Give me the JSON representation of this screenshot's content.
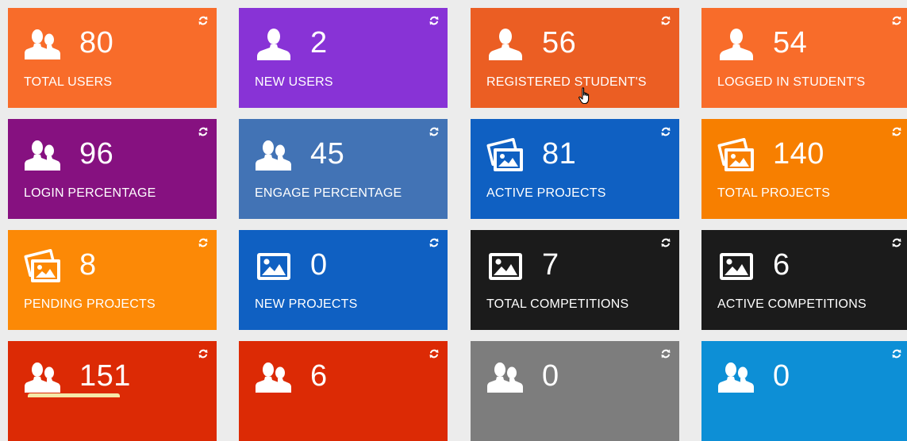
{
  "tiles": [
    {
      "value": "80",
      "label": "TOTAL USERS",
      "color": "#f86c2a",
      "icon": "users-icon"
    },
    {
      "value": "2",
      "label": "NEW USERS",
      "color": "#8833d6",
      "icon": "user-icon"
    },
    {
      "value": "56",
      "label": "REGISTERED STUDENT'S",
      "color": "#eb5e23",
      "icon": "user-icon"
    },
    {
      "value": "54",
      "label": "LOGGED IN STUDENT'S",
      "color": "#f86c2a",
      "icon": "user-icon"
    },
    {
      "value": "96",
      "label": "LOGIN PERCENTAGE",
      "color": "#861180",
      "icon": "users-icon"
    },
    {
      "value": "45",
      "label": "ENGAGE PERCENTAGE",
      "color": "#4273b5",
      "icon": "users-icon"
    },
    {
      "value": "81",
      "label": "ACTIVE PROJECTS",
      "color": "#0f60c2",
      "icon": "pictures-icon"
    },
    {
      "value": "140",
      "label": "TOTAL PROJECTS",
      "color": "#f77f00",
      "icon": "pictures-icon"
    },
    {
      "value": "8",
      "label": "PENDING PROJECTS",
      "color": "#fc8906",
      "icon": "pictures-icon"
    },
    {
      "value": "0",
      "label": "NEW PROJECTS",
      "color": "#0f60c2",
      "icon": "picture-icon"
    },
    {
      "value": "7",
      "label": "TOTAL COMPETITIONS",
      "color": "#1b1b1b",
      "icon": "picture-icon"
    },
    {
      "value": "6",
      "label": "ACTIVE COMPETITIONS",
      "color": "#1b1b1b",
      "icon": "picture-icon"
    },
    {
      "value": "151",
      "label": "",
      "color": "#dc2a05",
      "icon": "users-icon"
    },
    {
      "value": "6",
      "label": "",
      "color": "#dc2a05",
      "icon": "users-icon"
    },
    {
      "value": "0",
      "label": "",
      "color": "#7d7d7d",
      "icon": "users-icon"
    },
    {
      "value": "0",
      "label": "",
      "color": "#0d8fd6",
      "icon": "users-icon"
    }
  ]
}
